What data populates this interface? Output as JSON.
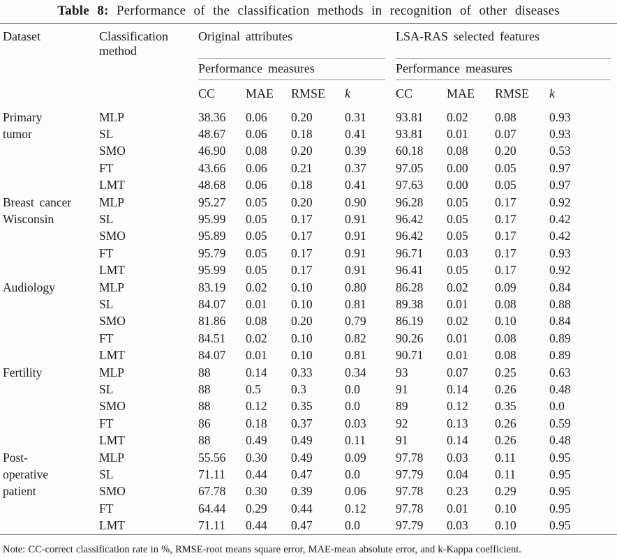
{
  "title": {
    "label": "Table 8:",
    "text": "Performance of the classification methods in recognition of other diseases"
  },
  "header": {
    "dataset": "Dataset",
    "method": "Classification\nmethod",
    "group_original": "Original attributes",
    "group_lsa": "LSA-RAS selected features",
    "performance_measures": "Performance measures",
    "metrics": [
      "CC",
      "MAE",
      "RMSE",
      "k"
    ]
  },
  "groups": [
    {
      "dataset": "Primary\ntumor",
      "rows": [
        {
          "method": "MLP",
          "original": [
            "38.36",
            "0.06",
            "0.20",
            "0.31"
          ],
          "lsa_ras": [
            "93.81",
            "0.02",
            "0.08",
            "0.93"
          ]
        },
        {
          "method": "SL",
          "original": [
            "48.67",
            "0.06",
            "0.18",
            "0.41"
          ],
          "lsa_ras": [
            "93.81",
            "0.01",
            "0.07",
            "0.93"
          ]
        },
        {
          "method": "SMO",
          "original": [
            "46.90",
            "0.08",
            "0.20",
            "0.39"
          ],
          "lsa_ras": [
            "60.18",
            "0.08",
            "0.20",
            "0.53"
          ]
        },
        {
          "method": "FT",
          "original": [
            "43.66",
            "0.06",
            "0.21",
            "0.37"
          ],
          "lsa_ras": [
            "97.05",
            "0.00",
            "0.05",
            "0.97"
          ]
        },
        {
          "method": "LMT",
          "original": [
            "48.68",
            "0.06",
            "0.18",
            "0.41"
          ],
          "lsa_ras": [
            "97.63",
            "0.00",
            "0.05",
            "0.97"
          ]
        }
      ]
    },
    {
      "dataset": "Breast cancer\nWisconsin",
      "rows": [
        {
          "method": "MLP",
          "original": [
            "95.27",
            "0.05",
            "0.20",
            "0.90"
          ],
          "lsa_ras": [
            "96.28",
            "0.05",
            "0.17",
            "0.92"
          ]
        },
        {
          "method": "SL",
          "original": [
            "95.99",
            "0.05",
            "0.17",
            "0.91"
          ],
          "lsa_ras": [
            "96.42",
            "0.05",
            "0.17",
            "0.42"
          ]
        },
        {
          "method": "SMO",
          "original": [
            "95.89",
            "0.05",
            "0.17",
            "0.91"
          ],
          "lsa_ras": [
            "96.42",
            "0.05",
            "0.17",
            "0.42"
          ]
        },
        {
          "method": "FT",
          "original": [
            "95.79",
            "0.05",
            "0.17",
            "0.91"
          ],
          "lsa_ras": [
            "96.71",
            "0.03",
            "0.17",
            "0.93"
          ]
        },
        {
          "method": "LMT",
          "original": [
            "95.99",
            "0.05",
            "0.17",
            "0.91"
          ],
          "lsa_ras": [
            "96.41",
            "0.05",
            "0.17",
            "0.92"
          ]
        }
      ]
    },
    {
      "dataset": "Audiology",
      "rows": [
        {
          "method": "MLP",
          "original": [
            "83.19",
            "0.02",
            "0.10",
            "0.80"
          ],
          "lsa_ras": [
            "86.28",
            "0.02",
            "0.09",
            "0.84"
          ]
        },
        {
          "method": "SL",
          "original": [
            "84.07",
            "0.01",
            "0.10",
            "0.81"
          ],
          "lsa_ras": [
            "89.38",
            "0.01",
            "0.08",
            "0.88"
          ]
        },
        {
          "method": "SMO",
          "original": [
            "81.86",
            "0.08",
            "0.20",
            "0.79"
          ],
          "lsa_ras": [
            "86.19",
            "0.02",
            "0.10",
            "0.84"
          ]
        },
        {
          "method": "FT",
          "original": [
            "84.51",
            "0.02",
            "0.10",
            "0.82"
          ],
          "lsa_ras": [
            "90.26",
            "0.01",
            "0.08",
            "0.89"
          ]
        },
        {
          "method": "LMT",
          "original": [
            "84.07",
            "0.01",
            "0.10",
            "0.81"
          ],
          "lsa_ras": [
            "90.71",
            "0.01",
            "0.08",
            "0.89"
          ]
        }
      ]
    },
    {
      "dataset": "Fertility",
      "rows": [
        {
          "method": "MLP",
          "original": [
            "88",
            "0.14",
            "0.33",
            "0.34"
          ],
          "lsa_ras": [
            "93",
            "0.07",
            "0.25",
            "0.63"
          ]
        },
        {
          "method": "SL",
          "original": [
            "88",
            "0.5",
            "0.3",
            "0.0"
          ],
          "lsa_ras": [
            "91",
            "0.14",
            "0.26",
            "0.48"
          ]
        },
        {
          "method": "SMO",
          "original": [
            "88",
            "0.12",
            "0.35",
            "0.0"
          ],
          "lsa_ras": [
            "89",
            "0.12",
            "0.35",
            "0.0"
          ]
        },
        {
          "method": "FT",
          "original": [
            "86",
            "0.18",
            "0.37",
            "0.03"
          ],
          "lsa_ras": [
            "92",
            "0.13",
            "0.26",
            "0.59"
          ]
        },
        {
          "method": "LMT",
          "original": [
            "88",
            "0.49",
            "0.49",
            "0.11"
          ],
          "lsa_ras": [
            "91",
            "0.14",
            "0.26",
            "0.48"
          ]
        }
      ]
    },
    {
      "dataset": "Post-\noperative\npatient",
      "rows": [
        {
          "method": "MLP",
          "original": [
            "55.56",
            "0.30",
            "0.49",
            "0.09"
          ],
          "lsa_ras": [
            "97.78",
            "0.03",
            "0.11",
            "0.95"
          ]
        },
        {
          "method": "SL",
          "original": [
            "71.11",
            "0.44",
            "0.47",
            "0.0"
          ],
          "lsa_ras": [
            "97.79",
            "0.04",
            "0.11",
            "0.95"
          ]
        },
        {
          "method": "SMO",
          "original": [
            "67.78",
            "0.30",
            "0.39",
            "0.06"
          ],
          "lsa_ras": [
            "97.78",
            "0.23",
            "0.29",
            "0.95"
          ]
        },
        {
          "method": "FT",
          "original": [
            "64.44",
            "0.29",
            "0.44",
            "0.12"
          ],
          "lsa_ras": [
            "97.78",
            "0.01",
            "0.10",
            "0.95"
          ]
        },
        {
          "method": "LMT",
          "original": [
            "71.11",
            "0.44",
            "0.47",
            "0.0"
          ],
          "lsa_ras": [
            "97.79",
            "0.03",
            "0.10",
            "0.95"
          ]
        }
      ]
    }
  ],
  "note": "Note: CC-correct classification rate in %, RMSE-root means square error, MAE-mean absolute error, and k-Kappa coefficient.",
  "colors": {
    "text": "#1c1c1c",
    "rule_full": "#787878",
    "rule_partial": "#8e8e8e",
    "background": "#fdfdfd"
  }
}
